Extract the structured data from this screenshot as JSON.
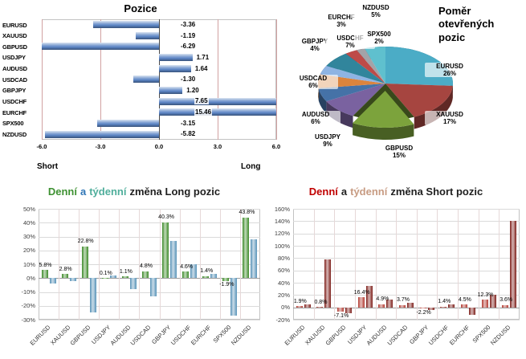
{
  "chart_data": [
    {
      "id": "positions",
      "type": "bar",
      "orientation": "horizontal",
      "title": "Pozice",
      "categories": [
        "EURUSD",
        "XAUUSD",
        "GBPUSD",
        "USDJPY",
        "AUDUSD",
        "USDCAD",
        "GBPJPY",
        "USDCHF",
        "EURCHF",
        "SPX500",
        "NZDUSD"
      ],
      "values": [
        -3.36,
        -1.19,
        -6.29,
        1.71,
        1.64,
        -1.3,
        1.2,
        7.65,
        15.46,
        -3.15,
        -5.82
      ],
      "xlim": [
        -6,
        6
      ],
      "xticks": [
        -6,
        -3,
        0,
        3,
        6
      ],
      "xtick_labels": [
        "-6.0",
        "-3.0",
        "0.0",
        "3.0",
        "6.0"
      ],
      "axis_left_label": "Short",
      "axis_right_label": "Long",
      "bar_color": "#5B84C4",
      "gridline_color": "#D2A2A2"
    },
    {
      "id": "open-positions-share",
      "type": "pie",
      "title": "Poměr otevřených pozic",
      "labels": [
        "EURUSD",
        "XAUUSD",
        "GBPUSD",
        "USDJPY",
        "AUDUSD",
        "USDCAD",
        "GBPJPY",
        "USDCHF",
        "EURCHF",
        "SPX500",
        "NZDUSD"
      ],
      "values": [
        26,
        17,
        15,
        9,
        6,
        6,
        4,
        7,
        3,
        2,
        5
      ],
      "colors": [
        "#4BACC6",
        "#A64540",
        "#7CA33C",
        "#7A62A0",
        "#4572A7",
        "#DB843D",
        "#8EB4E3",
        "#31859C",
        "#BE4B48",
        "#A3A3A8",
        "#5FC0CE"
      ],
      "exploded_slice": "GBPUSD",
      "style": "3d"
    },
    {
      "id": "long-change",
      "type": "bar",
      "title_parts": [
        {
          "text": "Denní",
          "color": "#3E9132"
        },
        {
          "text": "a",
          "color": "#2E75B6"
        },
        {
          "text": "týdenní",
          "color": "#4FAE9B"
        },
        {
          "text": "změna Long pozic",
          "color": "#1F1F1F"
        }
      ],
      "categories": [
        "EURUSD",
        "XAUUSD",
        "GBPUSD",
        "USDJPY",
        "AUDUSD",
        "USDCAD",
        "GBPJPY",
        "USDCHF",
        "EURCHF",
        "SPX500",
        "NZDUSD"
      ],
      "series": [
        {
          "name": "Denní změna",
          "color": "#3C8A28",
          "data_labels_visible": true,
          "values": [
            5.8,
            2.8,
            22.8,
            0.1,
            1.1,
            4.8,
            40.3,
            4.6,
            1.4,
            -1.9,
            43.8
          ]
        },
        {
          "name": "Týdenní změna",
          "color": "#5893B8",
          "data_labels_visible": false,
          "estimated": true,
          "values": [
            -4,
            -2,
            -25,
            2,
            -8,
            -13,
            27,
            10,
            3,
            -27,
            28
          ]
        }
      ],
      "ylim": [
        -30,
        50
      ],
      "yticks": [
        50,
        40,
        30,
        20,
        10,
        0,
        -10,
        -20,
        -30
      ]
    },
    {
      "id": "short-change",
      "type": "bar",
      "title_parts": [
        {
          "text": "Denní",
          "color": "#C00000"
        },
        {
          "text": "a",
          "color": "#1F1F1F"
        },
        {
          "text": "týdenní",
          "color": "#C79B82"
        },
        {
          "text": "změna Short pozic",
          "color": "#1F1F1F"
        }
      ],
      "categories": [
        "EURUSD",
        "XAUUSD",
        "GBPUSD",
        "USDJPY",
        "AUDUSD",
        "USDCAD",
        "GBPJPY",
        "USDCHF",
        "EURCHF",
        "SPX500",
        "NZDUSD"
      ],
      "series": [
        {
          "name": "Denní změna",
          "color": "#B23A31",
          "data_labels_visible": true,
          "values": [
            1.9,
            0.8,
            -7.1,
            16.4,
            4.9,
            3.7,
            -2.2,
            1.4,
            4.5,
            12.3,
            3.6
          ]
        },
        {
          "name": "Týdenní změna",
          "color": "#7E1F1A",
          "data_labels_visible": false,
          "estimated": true,
          "values": [
            5,
            78,
            -10,
            35,
            12,
            8,
            -5,
            5,
            -12,
            20,
            140
          ]
        }
      ],
      "ylim": [
        -20,
        160
      ],
      "yticks": [
        160,
        140,
        120,
        100,
        80,
        60,
        40,
        20,
        0,
        -20
      ]
    }
  ]
}
